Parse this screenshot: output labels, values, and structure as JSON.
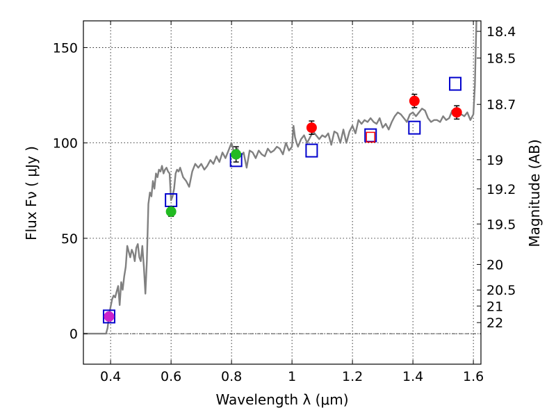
{
  "chart_data": {
    "type": "scatter",
    "xlabel": "Wavelength  λ (μm)",
    "ylabel": "Flux  Fν  ( μJy )",
    "ylabel_right": "Magnitude (AB)",
    "xlim": [
      0.31,
      1.625
    ],
    "ylim": [
      -16,
      164
    ],
    "x_ticks": [
      0.4,
      0.6,
      0.8,
      1,
      1.2,
      1.4,
      1.6
    ],
    "x_tick_labels": [
      "0.4",
      "0.6",
      "0.8",
      "1",
      "1.2",
      "1.4",
      "1.6"
    ],
    "y_ticks": [
      0,
      50,
      100,
      150
    ],
    "y_tick_labels": [
      "0",
      "50",
      "100",
      "150"
    ],
    "right_ticks": [
      {
        "label": "18.4",
        "flux": 158.5
      },
      {
        "label": "18.5",
        "flux": 144.5
      },
      {
        "label": "18.7",
        "flux": 120.2
      },
      {
        "label": "19",
        "flux": 91.2
      },
      {
        "label": "19.2",
        "flux": 75.9
      },
      {
        "label": "19.5",
        "flux": 57.5
      },
      {
        "label": "20",
        "flux": 36.3
      },
      {
        "label": "20.5",
        "flux": 22.9
      },
      {
        "label": "21",
        "flux": 14.5
      },
      {
        "label": "22",
        "flux": 5.8
      }
    ],
    "grid": true,
    "colors": {
      "spectrum": "#808080",
      "model_box": "#0000cc",
      "red_points": "#ff0000",
      "green_points": "#22bb22",
      "magenta_point": "#cc22cc",
      "hollow_red": "#ff0000"
    },
    "spectrum": {
      "x": [
        0.31,
        0.385,
        0.39,
        0.395,
        0.4,
        0.405,
        0.41,
        0.415,
        0.42,
        0.425,
        0.43,
        0.435,
        0.44,
        0.445,
        0.45,
        0.455,
        0.46,
        0.465,
        0.47,
        0.475,
        0.48,
        0.485,
        0.49,
        0.495,
        0.5,
        0.505,
        0.51,
        0.515,
        0.52,
        0.525,
        0.53,
        0.535,
        0.54,
        0.545,
        0.55,
        0.555,
        0.56,
        0.565,
        0.57,
        0.575,
        0.58,
        0.585,
        0.59,
        0.595,
        0.6,
        0.605,
        0.61,
        0.615,
        0.62,
        0.625,
        0.63,
        0.64,
        0.65,
        0.66,
        0.67,
        0.68,
        0.69,
        0.7,
        0.71,
        0.72,
        0.73,
        0.74,
        0.75,
        0.76,
        0.77,
        0.78,
        0.79,
        0.8,
        0.81,
        0.82,
        0.83,
        0.84,
        0.85,
        0.86,
        0.87,
        0.88,
        0.89,
        0.9,
        0.91,
        0.92,
        0.93,
        0.94,
        0.95,
        0.96,
        0.97,
        0.98,
        0.99,
        1.0,
        1.005,
        1.01,
        1.015,
        1.02,
        1.03,
        1.04,
        1.05,
        1.06,
        1.07,
        1.08,
        1.09,
        1.1,
        1.11,
        1.12,
        1.13,
        1.14,
        1.15,
        1.16,
        1.17,
        1.18,
        1.19,
        1.2,
        1.21,
        1.22,
        1.23,
        1.24,
        1.25,
        1.26,
        1.27,
        1.28,
        1.29,
        1.3,
        1.31,
        1.32,
        1.33,
        1.34,
        1.35,
        1.36,
        1.37,
        1.38,
        1.39,
        1.4,
        1.41,
        1.42,
        1.43,
        1.44,
        1.45,
        1.46,
        1.47,
        1.48,
        1.49,
        1.5,
        1.51,
        1.52,
        1.53,
        1.54,
        1.55,
        1.56,
        1.57,
        1.58,
        1.59,
        1.6,
        1.605,
        1.61
      ],
      "y": [
        0,
        0,
        3,
        10,
        14,
        18,
        20,
        19,
        22,
        25,
        15,
        27,
        23,
        30,
        35,
        46,
        43,
        40,
        44,
        42,
        38,
        45,
        47,
        40,
        38,
        46,
        35,
        21,
        38,
        68,
        74,
        72,
        80,
        76,
        84,
        82,
        86,
        85,
        88,
        84,
        86,
        87,
        85,
        84,
        70,
        72,
        76,
        84,
        86,
        85,
        87,
        82,
        80,
        77,
        85,
        89,
        87,
        89,
        86,
        88,
        91,
        89,
        93,
        90,
        95,
        92,
        96,
        100,
        94,
        97,
        93,
        95,
        87,
        96,
        95,
        92,
        96,
        94,
        93,
        97,
        95,
        96,
        98,
        97,
        94,
        100,
        96,
        98,
        109,
        103,
        100,
        98,
        102,
        104,
        100,
        103,
        106,
        104,
        102,
        104,
        103,
        105,
        99,
        106,
        105,
        100,
        107,
        100,
        106,
        109,
        105,
        112,
        110,
        112,
        111,
        113,
        111,
        110,
        113,
        108,
        110,
        107,
        111,
        114,
        116,
        115,
        113,
        111,
        115,
        116,
        114,
        116,
        118,
        117,
        113,
        111,
        112,
        112,
        111,
        114,
        112,
        113,
        117,
        115,
        118,
        115,
        114,
        116,
        112,
        115,
        130,
        165
      ]
    },
    "series": [
      {
        "kind": "model-box",
        "x": [
          0.395,
          0.6,
          0.815,
          1.065,
          1.26,
          1.405,
          1.54
        ],
        "y": [
          9,
          70,
          91,
          96,
          104,
          108,
          131
        ]
      },
      {
        "kind": "red-point",
        "x": [
          1.065,
          1.405,
          1.545
        ],
        "y": [
          108,
          122,
          116
        ],
        "err": [
          3.5,
          3.5,
          3.5
        ]
      },
      {
        "kind": "green-point",
        "x": [
          0.6,
          0.815
        ],
        "y": [
          64,
          94
        ],
        "err": [
          2.5,
          4
        ]
      },
      {
        "kind": "magenta-point",
        "x": [
          0.395
        ],
        "y": [
          9
        ],
        "err": [
          1.2
        ]
      },
      {
        "kind": "hollow-red-box",
        "x": [
          1.26
        ],
        "y": [
          103
        ]
      }
    ]
  }
}
